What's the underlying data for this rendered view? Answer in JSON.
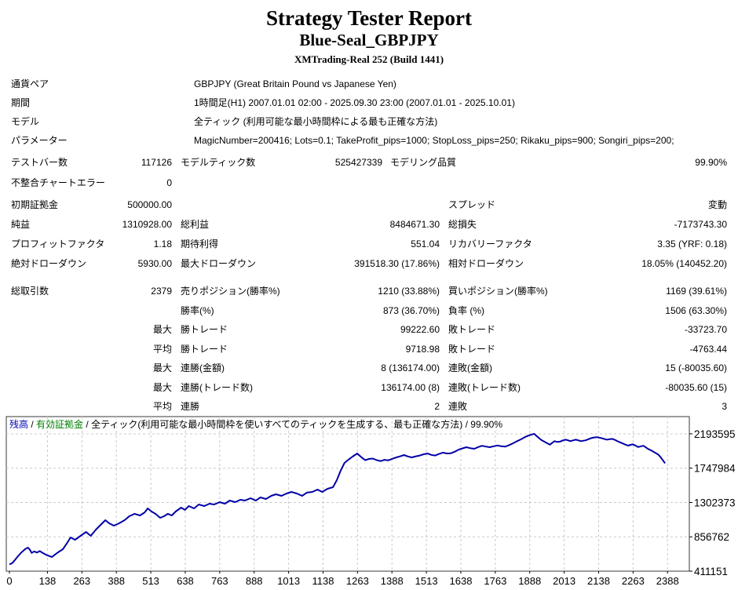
{
  "header": {
    "title": "Strategy Tester Report",
    "subtitle": "Blue-Seal_GBPJPY",
    "server": "XMTrading-Real 252 (Build 1441)"
  },
  "info_rows": [
    {
      "label": "通貨ペア",
      "value": "GBPJPY (Great Britain Pound vs Japanese Yen)"
    },
    {
      "label": "期間",
      "value": "1時間足(H1) 2007.01.01 02:00 - 2025.09.30 23:00 (2007.01.01 - 2025.10.01)"
    },
    {
      "label": "モデル",
      "value": "全ティック (利用可能な最小時間枠による最も正確な方法)"
    },
    {
      "label": "パラメーター",
      "value": "MagicNumber=200416; Lots=0.1; TakeProfit_pips=1000; StopLoss_pips=250; Rikaku_pips=900; Songiri_pips=200;"
    }
  ],
  "stat_sections": [
    {
      "cls": "secB",
      "rows": [
        {
          "l1": "テストバー数",
          "v1": "117126",
          "l2": "モデルティック数",
          "v2": "525427339",
          "l3": "モデリング品質",
          "v3": "99.90%"
        },
        {
          "l1": "不整合チャートエラー",
          "v1": "0",
          "l2": "",
          "v2": "",
          "l3": "",
          "v3": ""
        }
      ]
    },
    {
      "cls": "secC",
      "rows": [
        {
          "l1": "初期証拠金",
          "v1": "500000.00",
          "l2": "",
          "v2": "",
          "l3": "スプレッド",
          "v3": "変動"
        },
        {
          "l1": "純益",
          "v1": "1310928.00",
          "l2": "総利益",
          "v2": "8484671.30",
          "l3": "総損失",
          "v3": "-7173743.30"
        },
        {
          "l1": "プロフィットファクタ",
          "v1": "1.18",
          "l2": "期待利得",
          "v2": "551.04",
          "l3": "リカバリーファクタ",
          "v3": "3.35 (YRF: 0.18)"
        },
        {
          "l1": "絶対ドローダウン",
          "v1": "5930.00",
          "l2": "最大ドローダウン",
          "v2": "391518.30 (17.86%)",
          "l3": "相対ドローダウン",
          "v3": "18.05% (140452.20)"
        }
      ]
    },
    {
      "cls": "secD",
      "rows": [
        {
          "l1": "総取引数",
          "v1": "2379",
          "l2": "売りポジション(勝率%)",
          "v2": "1210 (33.88%)",
          "l3": "買いポジション(勝率%)",
          "v3": "1169 (39.61%)"
        },
        {
          "l1": "",
          "v1": "",
          "l2": "勝率(%)",
          "v2": "873 (36.70%)",
          "l3": "負率 (%)",
          "v3": "1506 (63.30%)"
        },
        {
          "l1": "",
          "v1": "最大",
          "l2": "勝トレード",
          "v2": "99222.60",
          "l3": "敗トレード",
          "v3": "-33723.70"
        },
        {
          "l1": "",
          "v1": "平均",
          "l2": "勝トレード",
          "v2": "9718.98",
          "l3": "敗トレード",
          "v3": "-4763.44"
        },
        {
          "l1": "",
          "v1": "最大",
          "l2": "連勝(金額)",
          "v2": "8 (136174.00)",
          "l3": "連敗(金額)",
          "v3": "15 (-80035.60)"
        },
        {
          "l1": "",
          "v1": "最大",
          "l2": "連勝(トレード数)",
          "v2": "136174.00 (8)",
          "l3": "連敗(トレード数)",
          "v3": "-80035.60 (15)"
        },
        {
          "l1": "",
          "v1": "平均",
          "l2": "連勝",
          "v2": "2",
          "l3": "連敗",
          "v3": "3"
        }
      ]
    }
  ],
  "chart_data": {
    "type": "line",
    "title": "残高 / 有効証拠金 / 全ティック(利用可能な最小時間枠を使いすべてのティックを生成する、最も正確な方法) / 99.90%",
    "legend": {
      "balance_label": "残高",
      "separator": " / ",
      "equity_label": "有効証拠金",
      "model_label": "全ティック(利用可能な最小時間枠を使いすべてのティックを生成する、最も正確な方法) / 99.90%"
    },
    "colors": {
      "balance_line": "#0000A8",
      "balance_text": "#0000B4",
      "equity_text": "#008000",
      "grid": "#c9c9c9",
      "border": "#3a3a3a"
    },
    "xlabel": "",
    "ylabel": "",
    "x_ticks": [
      0,
      138,
      263,
      388,
      513,
      638,
      763,
      888,
      1013,
      1138,
      1263,
      1388,
      1513,
      1638,
      1763,
      1888,
      2013,
      2138,
      2263,
      2388
    ],
    "y_ticks": [
      411151,
      856762,
      1302373,
      1747984,
      2193595
    ],
    "xlim": [
      0,
      2393
    ],
    "ylim": [
      411151,
      2417000
    ],
    "grid": true,
    "legend_position": "top-left-inside",
    "series": [
      {
        "name": "残高",
        "points": [
          [
            0,
            500000
          ],
          [
            10,
            515000
          ],
          [
            20,
            556000
          ],
          [
            32,
            610000
          ],
          [
            45,
            660000
          ],
          [
            58,
            700000
          ],
          [
            67,
            717000
          ],
          [
            74,
            690000
          ],
          [
            81,
            648000
          ],
          [
            90,
            668000
          ],
          [
            100,
            652000
          ],
          [
            110,
            672000
          ],
          [
            122,
            645000
          ],
          [
            134,
            622000
          ],
          [
            145,
            608000
          ],
          [
            154,
            594000
          ],
          [
            166,
            628000
          ],
          [
            178,
            660000
          ],
          [
            194,
            696000
          ],
          [
            208,
            770000
          ],
          [
            222,
            849000
          ],
          [
            238,
            818000
          ],
          [
            258,
            869000
          ],
          [
            270,
            900000
          ],
          [
            278,
            920000
          ],
          [
            295,
            869000
          ],
          [
            314,
            951000
          ],
          [
            334,
            1022000
          ],
          [
            348,
            1073000
          ],
          [
            362,
            1032000
          ],
          [
            379,
            1002000
          ],
          [
            398,
            1032000
          ],
          [
            418,
            1073000
          ],
          [
            435,
            1124000
          ],
          [
            454,
            1155000
          ],
          [
            474,
            1134000
          ],
          [
            491,
            1175000
          ],
          [
            502,
            1226000
          ],
          [
            516,
            1185000
          ],
          [
            530,
            1155000
          ],
          [
            547,
            1104000
          ],
          [
            561,
            1124000
          ],
          [
            575,
            1155000
          ],
          [
            589,
            1134000
          ],
          [
            603,
            1185000
          ],
          [
            623,
            1236000
          ],
          [
            637,
            1206000
          ],
          [
            651,
            1256000
          ],
          [
            670,
            1226000
          ],
          [
            687,
            1277000
          ],
          [
            707,
            1256000
          ],
          [
            726,
            1287000
          ],
          [
            743,
            1277000
          ],
          [
            763,
            1307000
          ],
          [
            782,
            1287000
          ],
          [
            799,
            1328000
          ],
          [
            819,
            1307000
          ],
          [
            838,
            1338000
          ],
          [
            855,
            1328000
          ],
          [
            875,
            1358000
          ],
          [
            894,
            1328000
          ],
          [
            911,
            1368000
          ],
          [
            931,
            1348000
          ],
          [
            950,
            1389000
          ],
          [
            967,
            1409000
          ],
          [
            987,
            1389000
          ],
          [
            1006,
            1419000
          ],
          [
            1023,
            1440000
          ],
          [
            1043,
            1419000
          ],
          [
            1062,
            1389000
          ],
          [
            1079,
            1430000
          ],
          [
            1099,
            1440000
          ],
          [
            1118,
            1470000
          ],
          [
            1135,
            1440000
          ],
          [
            1154,
            1480000
          ],
          [
            1174,
            1501000
          ],
          [
            1188,
            1592000
          ],
          [
            1202,
            1715000
          ],
          [
            1216,
            1816000
          ],
          [
            1230,
            1858000
          ],
          [
            1245,
            1898000
          ],
          [
            1262,
            1938000
          ],
          [
            1277,
            1890000
          ],
          [
            1291,
            1852000
          ],
          [
            1305,
            1868000
          ],
          [
            1319,
            1872000
          ],
          [
            1333,
            1852000
          ],
          [
            1347,
            1840000
          ],
          [
            1361,
            1856000
          ],
          [
            1375,
            1850000
          ],
          [
            1390,
            1870000
          ],
          [
            1404,
            1888000
          ],
          [
            1418,
            1902000
          ],
          [
            1432,
            1918000
          ],
          [
            1446,
            1900000
          ],
          [
            1460,
            1888000
          ],
          [
            1475,
            1902000
          ],
          [
            1489,
            1912000
          ],
          [
            1503,
            1928000
          ],
          [
            1517,
            1938000
          ],
          [
            1531,
            1920000
          ],
          [
            1545,
            1912000
          ],
          [
            1559,
            1932000
          ],
          [
            1573,
            1950000
          ],
          [
            1588,
            1938000
          ],
          [
            1602,
            1942000
          ],
          [
            1616,
            1962000
          ],
          [
            1630,
            1988000
          ],
          [
            1644,
            2005000
          ],
          [
            1658,
            2020000
          ],
          [
            1672,
            2008000
          ],
          [
            1687,
            2000000
          ],
          [
            1701,
            2022000
          ],
          [
            1715,
            2038000
          ],
          [
            1729,
            2028000
          ],
          [
            1743,
            2020000
          ],
          [
            1757,
            2032000
          ],
          [
            1771,
            2042000
          ],
          [
            1785,
            2032000
          ],
          [
            1800,
            2028000
          ],
          [
            1814,
            2048000
          ],
          [
            1828,
            2072000
          ],
          [
            1842,
            2098000
          ],
          [
            1856,
            2122000
          ],
          [
            1870,
            2150000
          ],
          [
            1884,
            2172000
          ],
          [
            1904,
            2193595
          ],
          [
            1912,
            2168000
          ],
          [
            1921,
            2140000
          ],
          [
            1931,
            2112000
          ],
          [
            1941,
            2092000
          ],
          [
            1951,
            2072000
          ],
          [
            1961,
            2052000
          ],
          [
            1970,
            2078000
          ],
          [
            1978,
            2098000
          ],
          [
            1988,
            2088000
          ],
          [
            1998,
            2092000
          ],
          [
            2008,
            2108000
          ],
          [
            2018,
            2118000
          ],
          [
            2028,
            2108000
          ],
          [
            2035,
            2098000
          ],
          [
            2045,
            2108000
          ],
          [
            2055,
            2118000
          ],
          [
            2065,
            2108000
          ],
          [
            2074,
            2098000
          ],
          [
            2083,
            2104000
          ],
          [
            2091,
            2110000
          ],
          [
            2101,
            2124000
          ],
          [
            2111,
            2138000
          ],
          [
            2121,
            2146000
          ],
          [
            2131,
            2150000
          ],
          [
            2140,
            2144000
          ],
          [
            2148,
            2138000
          ],
          [
            2158,
            2128000
          ],
          [
            2168,
            2118000
          ],
          [
            2178,
            2124000
          ],
          [
            2188,
            2128000
          ],
          [
            2198,
            2114000
          ],
          [
            2205,
            2100000
          ],
          [
            2215,
            2084000
          ],
          [
            2225,
            2070000
          ],
          [
            2235,
            2054000
          ],
          [
            2245,
            2040000
          ],
          [
            2254,
            2050000
          ],
          [
            2262,
            2058000
          ],
          [
            2272,
            2040000
          ],
          [
            2282,
            2022000
          ],
          [
            2292,
            2032000
          ],
          [
            2301,
            2038000
          ],
          [
            2310,
            2016000
          ],
          [
            2318,
            1996000
          ],
          [
            2330,
            1976000
          ],
          [
            2342,
            1950000
          ],
          [
            2354,
            1926000
          ],
          [
            2364,
            1886000
          ],
          [
            2372,
            1846000
          ],
          [
            2379,
            1810928
          ]
        ]
      }
    ]
  }
}
